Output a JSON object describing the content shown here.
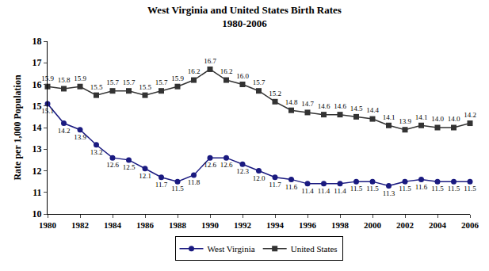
{
  "chart_data": {
    "type": "line",
    "title": "West Virginia and United States Birth Rates\n1980-2006",
    "y_label": "Rate per 1,000 Population",
    "x": [
      1980,
      1981,
      1982,
      1983,
      1984,
      1985,
      1986,
      1987,
      1988,
      1989,
      1990,
      1991,
      1992,
      1993,
      1994,
      1995,
      1996,
      1997,
      1998,
      1999,
      2000,
      2001,
      2002,
      2003,
      2004,
      2005,
      2006
    ],
    "series": [
      {
        "name": "West Virginia",
        "color": "#1a1a80",
        "marker": "circle",
        "values": [
          15.1,
          14.2,
          13.9,
          13.2,
          12.6,
          12.5,
          12.1,
          11.7,
          11.5,
          11.8,
          12.6,
          12.6,
          12.3,
          12.0,
          11.7,
          11.6,
          11.4,
          11.4,
          11.4,
          11.5,
          11.5,
          11.3,
          11.5,
          11.6,
          11.5,
          11.5,
          11.5
        ],
        "value_labels": [
          "15.1",
          "14.2",
          "13.9",
          "13.2",
          "12.6",
          "12.5",
          "12.1",
          "11.7",
          "11.5",
          "11.8",
          "12.6",
          "12.6",
          "12.3",
          "12.0",
          "11.7",
          "11.6",
          "11.4",
          "11.4",
          "11.4",
          "11.5",
          "11.5",
          "11.3",
          "11.5",
          "11.6",
          "11.5",
          "11.5",
          "11.5"
        ]
      },
      {
        "name": "United States",
        "color": "#333333",
        "marker": "square",
        "values": [
          15.9,
          15.8,
          15.9,
          15.5,
          15.7,
          15.7,
          15.5,
          15.7,
          15.9,
          16.2,
          16.7,
          16.2,
          16.0,
          15.7,
          15.2,
          14.8,
          14.7,
          14.6,
          14.6,
          14.5,
          14.4,
          14.1,
          13.9,
          14.1,
          14.0,
          14.0,
          14.2
        ],
        "value_labels": [
          "15.9",
          "15.8",
          "15.9",
          "15.5",
          "15.7",
          "15.7",
          "15.5",
          "15.7",
          "15.9",
          "16.2",
          "16.7",
          "16.2",
          "16.0",
          "15.7",
          "15.2",
          "14.8",
          "14.7",
          "14.6",
          "14.6",
          "14.5",
          "14.4",
          "14.1",
          "13.9",
          "14.1",
          "14.0",
          "14.0",
          "14.2"
        ]
      }
    ],
    "xlim": [
      1980,
      2006
    ],
    "xticks": [
      1980,
      1982,
      1984,
      1986,
      1988,
      1990,
      1992,
      1994,
      1996,
      1998,
      2000,
      2002,
      2004,
      2006
    ],
    "ylim": [
      10,
      18
    ],
    "yticks": [
      10,
      11,
      12,
      13,
      14,
      15,
      16,
      17,
      18
    ],
    "grid": false,
    "legend": "bottom",
    "data_labels": true
  }
}
